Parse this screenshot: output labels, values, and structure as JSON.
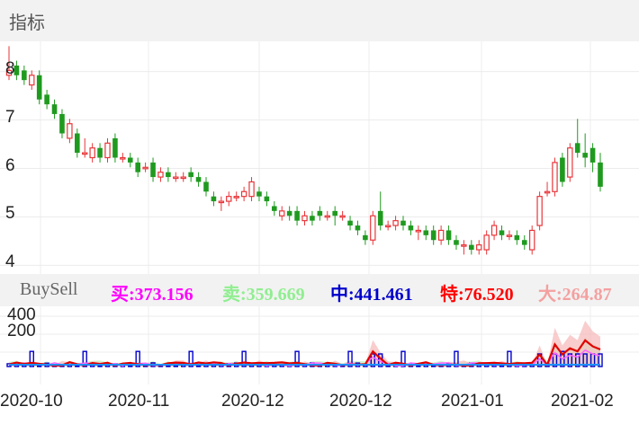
{
  "header": {
    "title": "指标"
  },
  "buysell": {
    "title": "BuySell",
    "items": [
      {
        "label": "买:373.156",
        "color": "#ff00ff"
      },
      {
        "label": "卖:359.669",
        "color": "#90ee90"
      },
      {
        "label": "中:441.461",
        "color": "#0000cc"
      },
      {
        "label": "特:76.520",
        "color": "#ff0000"
      },
      {
        "label": "大:264.87",
        "color": "#f4a0a0"
      }
    ]
  },
  "chart_data": {
    "type": "candlestick",
    "price_axis": {
      "ticks": [
        8,
        7,
        6,
        5,
        4
      ],
      "range": [
        3.6,
        8.4
      ]
    },
    "volume_axis": {
      "ticks": [
        400,
        200
      ],
      "range": [
        0,
        400
      ]
    },
    "x_tick_labels": [
      "2020-10",
      "2020-11",
      "2020-12",
      "2020-12",
      "2021-01",
      "2021-02"
    ],
    "candles": [
      {
        "o": 7.7,
        "c": 7.8,
        "h": 8.3,
        "l": 7.6
      },
      {
        "o": 7.9,
        "c": 7.7,
        "h": 8.0,
        "l": 7.6
      },
      {
        "o": 7.8,
        "c": 7.6,
        "h": 7.9,
        "l": 7.5
      },
      {
        "o": 7.5,
        "c": 7.7,
        "h": 7.8,
        "l": 7.4
      },
      {
        "o": 7.7,
        "c": 7.2,
        "h": 7.8,
        "l": 7.1
      },
      {
        "o": 7.3,
        "c": 7.1,
        "h": 7.4,
        "l": 7.0
      },
      {
        "o": 7.1,
        "c": 6.9,
        "h": 7.2,
        "l": 6.8
      },
      {
        "o": 6.9,
        "c": 6.5,
        "h": 7.0,
        "l": 6.4
      },
      {
        "o": 6.4,
        "c": 6.7,
        "h": 6.8,
        "l": 6.3
      },
      {
        "o": 6.5,
        "c": 6.1,
        "h": 6.6,
        "l": 6.0
      },
      {
        "o": 6.1,
        "c": 6.1,
        "h": 6.4,
        "l": 6.0
      },
      {
        "o": 6.0,
        "c": 6.2,
        "h": 6.3,
        "l": 5.9
      },
      {
        "o": 6.2,
        "c": 6.0,
        "h": 6.3,
        "l": 5.9
      },
      {
        "o": 6.0,
        "c": 6.3,
        "h": 6.4,
        "l": 5.9
      },
      {
        "o": 6.4,
        "c": 6.0,
        "h": 6.5,
        "l": 5.9
      },
      {
        "o": 6.0,
        "c": 6.0,
        "h": 6.1,
        "l": 5.9
      },
      {
        "o": 6.0,
        "c": 5.9,
        "h": 6.1,
        "l": 5.8
      },
      {
        "o": 5.9,
        "c": 5.7,
        "h": 6.0,
        "l": 5.6
      },
      {
        "o": 5.8,
        "c": 5.8,
        "h": 5.9,
        "l": 5.7
      },
      {
        "o": 5.9,
        "c": 5.6,
        "h": 6.0,
        "l": 5.5
      },
      {
        "o": 5.6,
        "c": 5.7,
        "h": 5.8,
        "l": 5.5
      },
      {
        "o": 5.7,
        "c": 5.6,
        "h": 5.8,
        "l": 5.5
      },
      {
        "o": 5.6,
        "c": 5.6,
        "h": 5.7,
        "l": 5.5
      },
      {
        "o": 5.6,
        "c": 5.6,
        "h": 5.7,
        "l": 5.5
      },
      {
        "o": 5.7,
        "c": 5.6,
        "h": 5.8,
        "l": 5.5
      },
      {
        "o": 5.6,
        "c": 5.5,
        "h": 5.7,
        "l": 5.4
      },
      {
        "o": 5.5,
        "c": 5.3,
        "h": 5.6,
        "l": 5.2
      },
      {
        "o": 5.2,
        "c": 5.1,
        "h": 5.3,
        "l": 5.0
      },
      {
        "o": 5.1,
        "c": 5.1,
        "h": 5.2,
        "l": 4.9
      },
      {
        "o": 5.1,
        "c": 5.2,
        "h": 5.3,
        "l": 5.0
      },
      {
        "o": 5.2,
        "c": 5.2,
        "h": 5.3,
        "l": 5.1
      },
      {
        "o": 5.2,
        "c": 5.3,
        "h": 5.4,
        "l": 5.1
      },
      {
        "o": 5.2,
        "c": 5.5,
        "h": 5.6,
        "l": 5.1
      },
      {
        "o": 5.3,
        "c": 5.2,
        "h": 5.4,
        "l": 5.1
      },
      {
        "o": 5.2,
        "c": 5.1,
        "h": 5.3,
        "l": 5.0
      },
      {
        "o": 5.0,
        "c": 4.9,
        "h": 5.1,
        "l": 4.8
      },
      {
        "o": 4.8,
        "c": 4.9,
        "h": 5.0,
        "l": 4.7
      },
      {
        "o": 4.9,
        "c": 4.8,
        "h": 5.0,
        "l": 4.7
      },
      {
        "o": 4.9,
        "c": 4.7,
        "h": 5.0,
        "l": 4.6
      },
      {
        "o": 4.7,
        "c": 4.8,
        "h": 4.9,
        "l": 4.6
      },
      {
        "o": 4.8,
        "c": 4.7,
        "h": 4.9,
        "l": 4.6
      },
      {
        "o": 4.9,
        "c": 4.8,
        "h": 5.0,
        "l": 4.7
      },
      {
        "o": 4.8,
        "c": 4.8,
        "h": 4.9,
        "l": 4.7
      },
      {
        "o": 4.9,
        "c": 4.8,
        "h": 5.0,
        "l": 4.6
      },
      {
        "o": 4.8,
        "c": 4.8,
        "h": 4.9,
        "l": 4.7
      },
      {
        "o": 4.7,
        "c": 4.6,
        "h": 4.8,
        "l": 4.5
      },
      {
        "o": 4.6,
        "c": 4.5,
        "h": 4.7,
        "l": 4.4
      },
      {
        "o": 4.4,
        "c": 4.3,
        "h": 4.5,
        "l": 4.2
      },
      {
        "o": 4.3,
        "c": 4.8,
        "h": 4.9,
        "l": 4.2
      },
      {
        "o": 4.9,
        "c": 4.6,
        "h": 5.3,
        "l": 4.5
      },
      {
        "o": 4.6,
        "c": 4.6,
        "h": 4.7,
        "l": 4.5
      },
      {
        "o": 4.6,
        "c": 4.7,
        "h": 4.8,
        "l": 4.5
      },
      {
        "o": 4.7,
        "c": 4.6,
        "h": 4.8,
        "l": 4.5
      },
      {
        "o": 4.6,
        "c": 4.5,
        "h": 4.7,
        "l": 4.4
      },
      {
        "o": 4.5,
        "c": 4.5,
        "h": 4.6,
        "l": 4.3
      },
      {
        "o": 4.5,
        "c": 4.4,
        "h": 4.6,
        "l": 4.3
      },
      {
        "o": 4.5,
        "c": 4.3,
        "h": 4.6,
        "l": 4.2
      },
      {
        "o": 4.3,
        "c": 4.5,
        "h": 4.6,
        "l": 4.2
      },
      {
        "o": 4.5,
        "c": 4.3,
        "h": 4.6,
        "l": 4.2
      },
      {
        "o": 4.3,
        "c": 4.2,
        "h": 4.4,
        "l": 4.1
      },
      {
        "o": 4.2,
        "c": 4.2,
        "h": 4.3,
        "l": 4.0
      },
      {
        "o": 4.2,
        "c": 4.1,
        "h": 4.3,
        "l": 4.0
      },
      {
        "o": 4.1,
        "c": 4.2,
        "h": 4.3,
        "l": 4.0
      },
      {
        "o": 4.1,
        "c": 4.4,
        "h": 4.5,
        "l": 4.0
      },
      {
        "o": 4.4,
        "c": 4.6,
        "h": 4.7,
        "l": 4.3
      },
      {
        "o": 4.5,
        "c": 4.4,
        "h": 4.6,
        "l": 4.3
      },
      {
        "o": 4.4,
        "c": 4.4,
        "h": 4.5,
        "l": 4.3
      },
      {
        "o": 4.4,
        "c": 4.3,
        "h": 4.5,
        "l": 4.2
      },
      {
        "o": 4.3,
        "c": 4.2,
        "h": 4.4,
        "l": 4.1
      },
      {
        "o": 4.1,
        "c": 4.5,
        "h": 4.6,
        "l": 4.0
      },
      {
        "o": 4.6,
        "c": 5.2,
        "h": 5.3,
        "l": 4.5
      },
      {
        "o": 5.3,
        "c": 5.3,
        "h": 5.5,
        "l": 5.2
      },
      {
        "o": 5.3,
        "c": 5.9,
        "h": 6.0,
        "l": 5.2
      },
      {
        "o": 6.0,
        "c": 5.5,
        "h": 6.1,
        "l": 5.4
      },
      {
        "o": 5.6,
        "c": 6.2,
        "h": 6.3,
        "l": 5.5
      },
      {
        "o": 6.3,
        "c": 6.1,
        "h": 6.8,
        "l": 6.0
      },
      {
        "o": 6.1,
        "c": 6.0,
        "h": 6.5,
        "l": 5.8
      },
      {
        "o": 6.2,
        "c": 5.9,
        "h": 6.3,
        "l": 5.7
      },
      {
        "o": 5.9,
        "c": 5.4,
        "h": 6.1,
        "l": 5.3
      }
    ]
  }
}
